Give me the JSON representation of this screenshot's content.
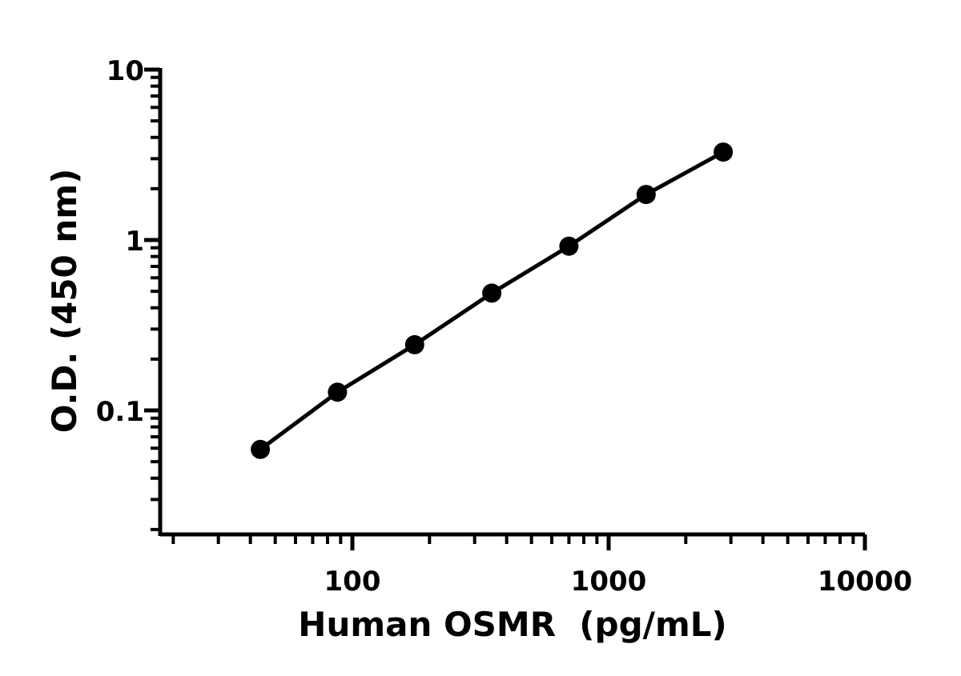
{
  "chart_data": {
    "type": "line",
    "title": "",
    "xlabel": "Human OSMR  (pg/mL)",
    "ylabel": "O.D. (450 nm)",
    "x_scale": "log",
    "y_scale": "log",
    "xlim": [
      20,
      10000
    ],
    "ylim": [
      0.018,
      10
    ],
    "x_tick_labels": [
      "100",
      "1000",
      "10000"
    ],
    "x_tick_values": [
      100,
      1000,
      10000
    ],
    "y_tick_labels": [
      "0.1",
      "1",
      "10"
    ],
    "y_tick_values": [
      0.1,
      1,
      10
    ],
    "grid": false,
    "legend": "none",
    "series": [
      {
        "x": [
          43.75,
          87.5,
          175,
          350,
          700,
          1400,
          2800
        ],
        "y": [
          0.059,
          0.128,
          0.243,
          0.488,
          0.92,
          1.85,
          3.28
        ],
        "marker": "circle",
        "color": "#000000"
      }
    ]
  }
}
